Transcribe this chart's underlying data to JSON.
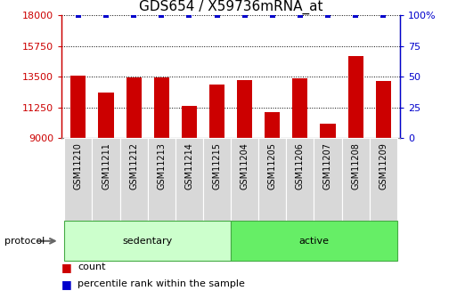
{
  "title": "GDS654 / X59736mRNA_at",
  "samples": [
    "GSM11210",
    "GSM11211",
    "GSM11212",
    "GSM11213",
    "GSM11214",
    "GSM11215",
    "GSM11204",
    "GSM11205",
    "GSM11206",
    "GSM11207",
    "GSM11208",
    "GSM11209"
  ],
  "counts": [
    13550,
    12350,
    13450,
    13480,
    11350,
    12950,
    13250,
    10900,
    13400,
    10050,
    15000,
    13200
  ],
  "percentile_ranks": [
    100,
    100,
    100,
    100,
    100,
    100,
    100,
    100,
    100,
    100,
    100,
    100
  ],
  "bar_color": "#cc0000",
  "dot_color": "#0000cc",
  "ylim_left": [
    9000,
    18000
  ],
  "ylim_right": [
    0,
    100
  ],
  "yticks_left": [
    9000,
    11250,
    13500,
    15750,
    18000
  ],
  "yticks_right": [
    0,
    25,
    50,
    75,
    100
  ],
  "groups": [
    {
      "label": "sedentary",
      "start": 0,
      "end": 6,
      "color": "#ccffcc"
    },
    {
      "label": "active",
      "start": 6,
      "end": 12,
      "color": "#66ee66"
    }
  ],
  "group_row_label": "protocol",
  "legend_items": [
    {
      "label": "count",
      "color": "#cc0000"
    },
    {
      "label": "percentile rank within the sample",
      "color": "#0000cc"
    }
  ],
  "left_tick_color": "#cc0000",
  "right_tick_color": "#0000cc",
  "title_fontsize": 11,
  "tick_fontsize": 8,
  "sample_fontsize": 7,
  "group_fontsize": 8,
  "legend_fontsize": 8
}
